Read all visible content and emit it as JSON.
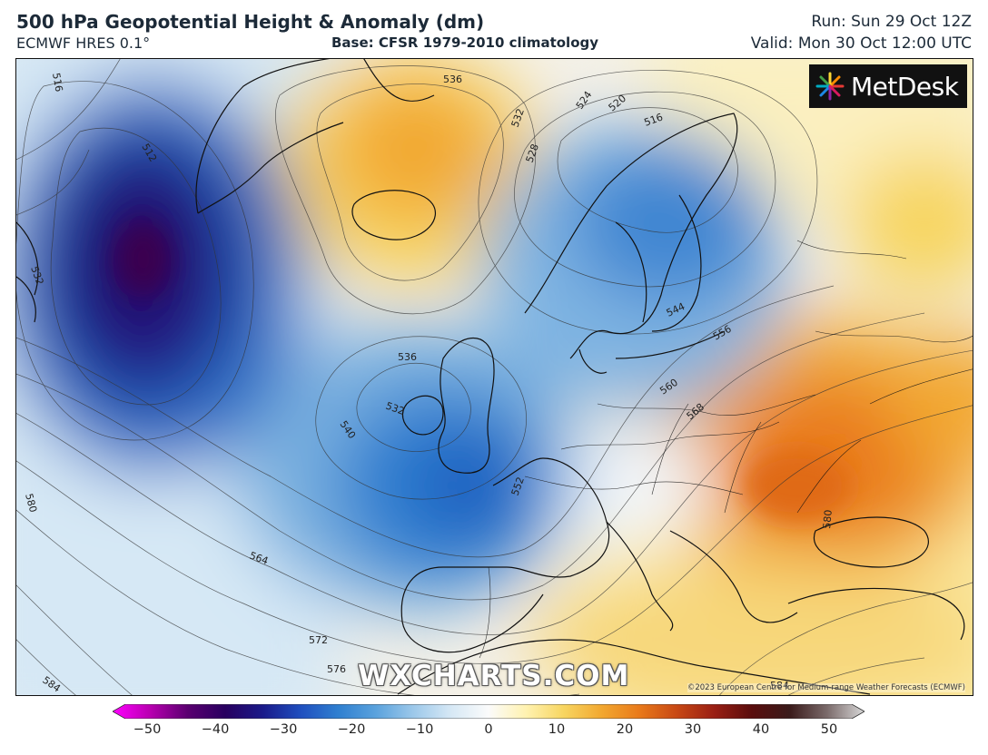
{
  "header": {
    "title": "500 hPa Geopotential Height & Anomaly (dm)",
    "model": "ECMWF HRES 0.1°",
    "base": "Base: CFSR 1979-2010 climatology",
    "run": "Run: Sun 29 Oct 12Z",
    "valid": "Valid: Mon 30 Oct 12:00 UTC"
  },
  "logo": {
    "text": "MetDesk",
    "icon": "metdesk-starburst-icon"
  },
  "watermark": "WXCHARTS.COM",
  "copyright": "©2023 European Centre for Medium-range Weather Forecasts (ECMWF)",
  "contour_labels": [
    "536",
    "532",
    "528",
    "524",
    "520",
    "516",
    "512",
    "516",
    "532",
    "536",
    "532",
    "540",
    "544",
    "552",
    "556",
    "560",
    "568",
    "580",
    "564",
    "572",
    "576",
    "584",
    "584",
    "580"
  ],
  "colorbar": {
    "ticks": [
      "−50",
      "−40",
      "−30",
      "−20",
      "−10",
      "0",
      "10",
      "20",
      "30",
      "40",
      "50"
    ],
    "colors": {
      "minus50": "#ff00ff",
      "minus45": "#b800b0",
      "minus40": "#5a0070",
      "minus35": "#280060",
      "minus30": "#1a1a8a",
      "minus25": "#1f4fbf",
      "minus20": "#2f7fd0",
      "minus15": "#5aa2dd",
      "minus10": "#9cc8ea",
      "minus5": "#d6e8f5",
      "zero": "#fbfbfb",
      "plus5": "#fff2b0",
      "plus10": "#f7d560",
      "plus15": "#f2a830",
      "plus20": "#e97a1a",
      "plus25": "#c84814",
      "plus30": "#9a1f14",
      "plus35": "#5a0d0d",
      "plus40": "#3a1a1a",
      "plus45": "#7a6a6a",
      "plus50": "#d8d8d8"
    }
  }
}
